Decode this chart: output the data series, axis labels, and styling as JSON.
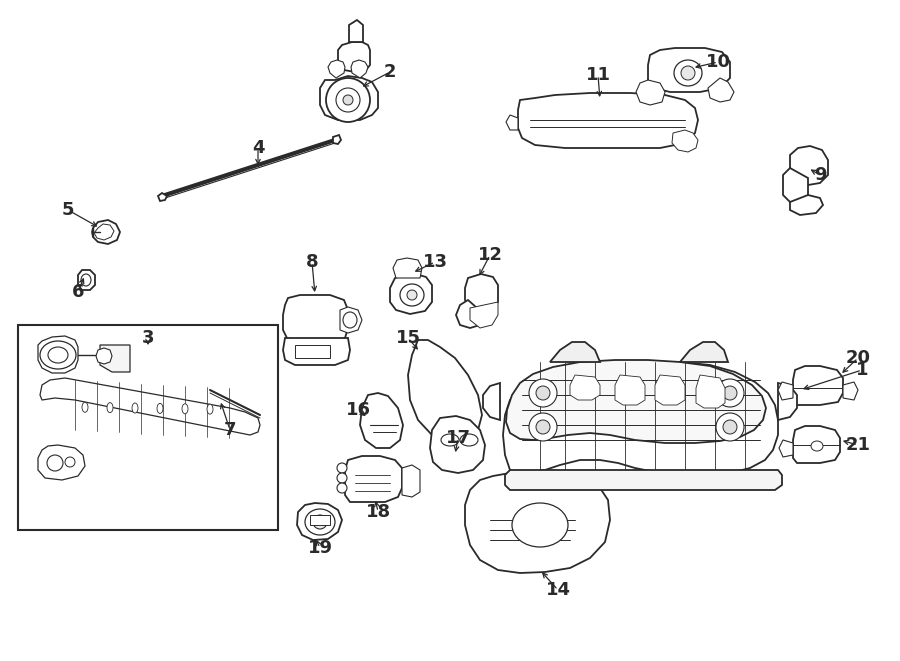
{
  "bg_color": "#ffffff",
  "line_color": "#2a2a2a",
  "lw": 1.3,
  "figsize": [
    9.0,
    6.61
  ],
  "dpi": 100
}
